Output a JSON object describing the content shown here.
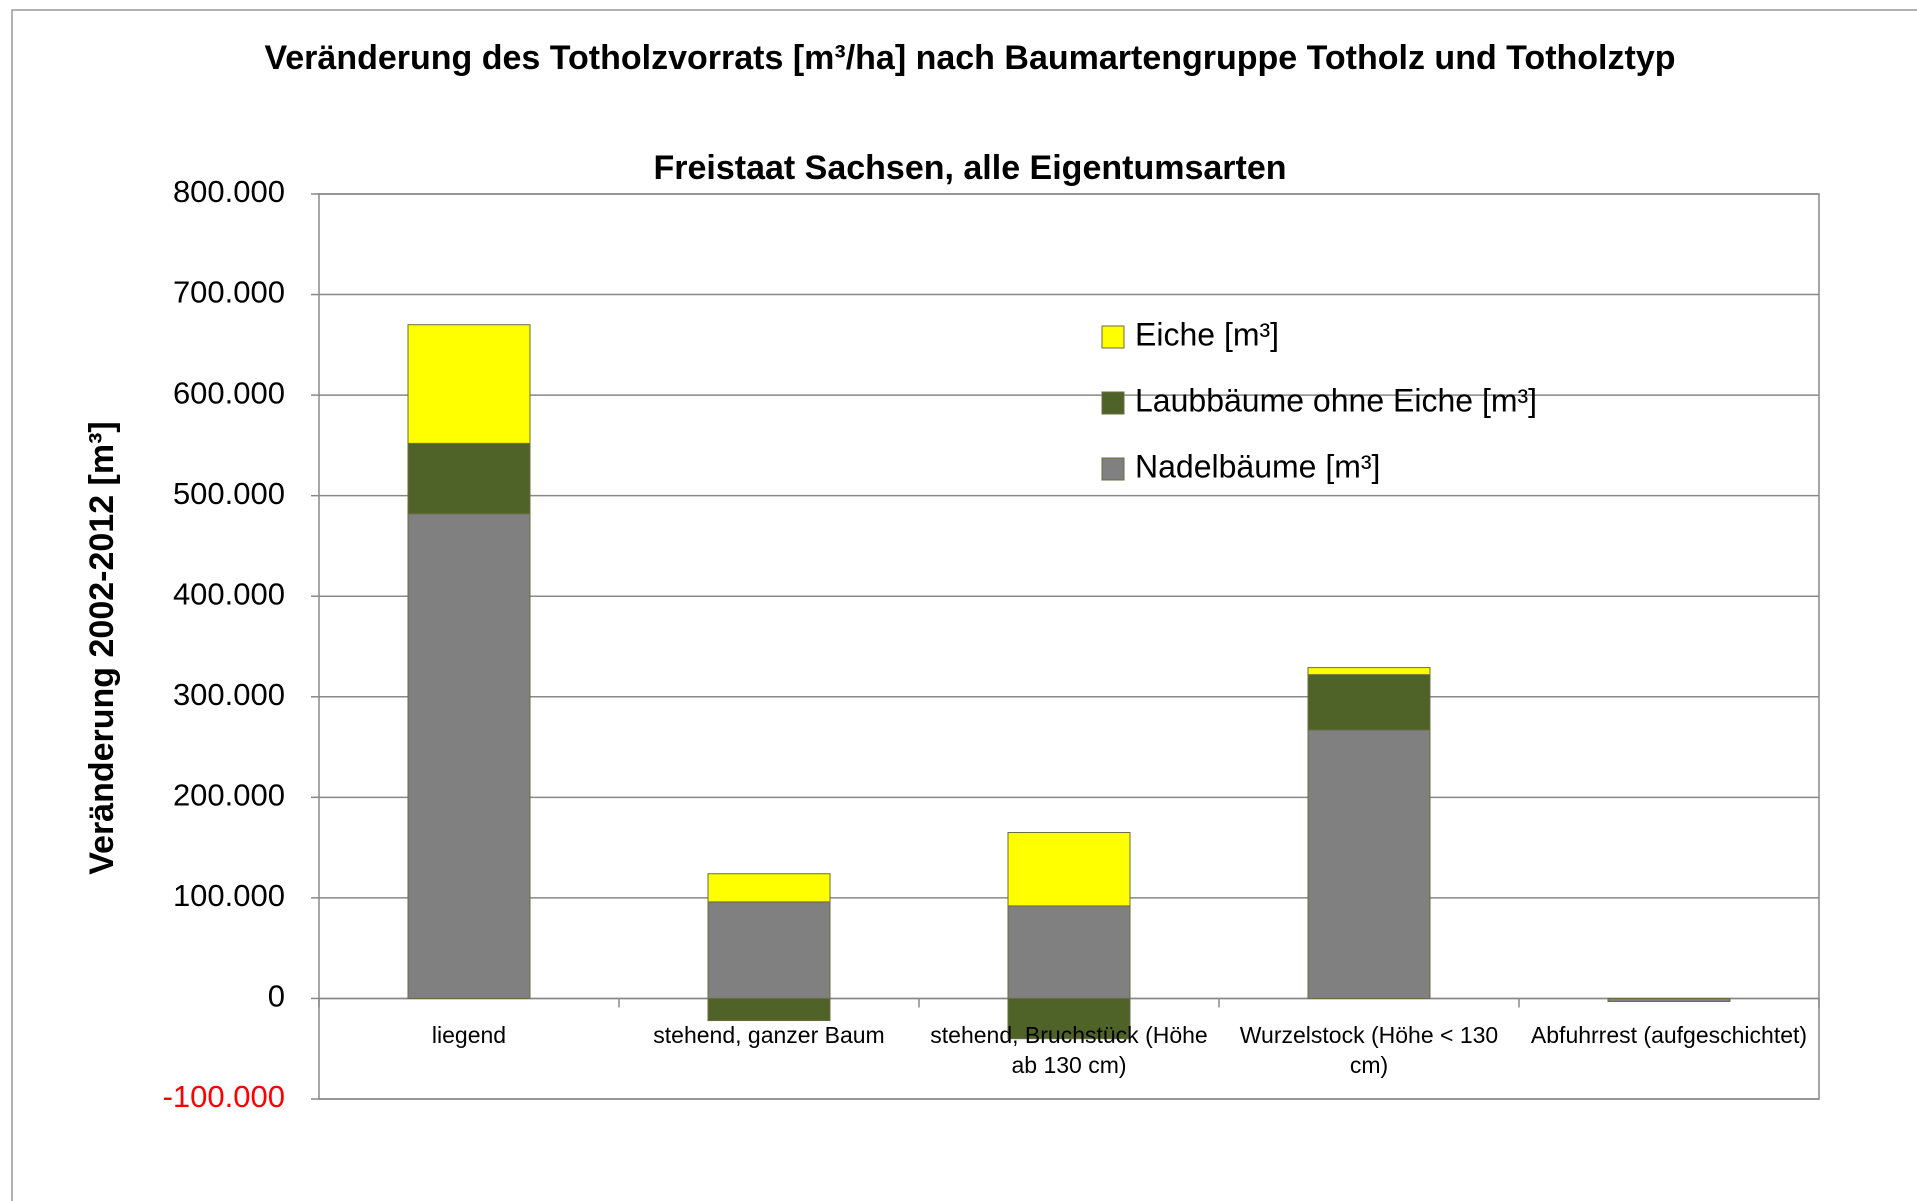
{
  "chart_data": {
    "type": "stacked_bar",
    "title": "Veränderung des Totholzvorrats [m³/ha] nach Baumartengruppe Totholz und Totholztyp",
    "subtitle": "Freistaat Sachsen, alle Eigentumsarten",
    "y_label": "Veränderung 2002-2012 [m³]",
    "categories": [
      "liegend",
      "stehend, ganzer Baum",
      "stehend, Bruchstück (Höhe ab 130 cm)",
      "Wurzelstock (Höhe < 130 cm)",
      "Abfuhrrest (aufgeschichtet)"
    ],
    "series": [
      {
        "name": "Nadelbäume [m³]",
        "color": "#808080",
        "values": [
          482000,
          96000,
          92000,
          267000,
          -3000
        ]
      },
      {
        "name": "Laubbäume ohne Eiche [m³]",
        "color": "#4f6228",
        "values": [
          70000,
          -22000,
          -40000,
          55000,
          0
        ]
      },
      {
        "name": "Eiche [m³]",
        "color": "#ffff00",
        "values": [
          118000,
          28000,
          73000,
          7000,
          0
        ]
      }
    ],
    "ylim": [
      -100000,
      800000
    ],
    "yticks": [
      {
        "value": -100000,
        "label": "-100.000"
      },
      0,
      {
        "value": 100000,
        "label": "100.000"
      },
      {
        "value": 200000,
        "label": "200.000"
      },
      {
        "value": 300000,
        "label": "300.000"
      },
      {
        "value": 400000,
        "label": "400.000"
      },
      {
        "value": 500000,
        "label": "500.000"
      },
      {
        "value": 600000,
        "label": "600.000"
      },
      {
        "value": 700000,
        "label": "700.000"
      },
      {
        "value": 800000,
        "label": "800.000"
      }
    ],
    "grid": true
  }
}
